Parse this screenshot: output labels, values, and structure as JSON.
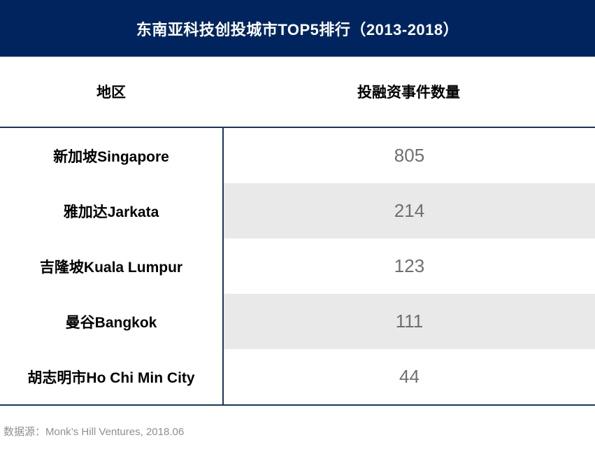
{
  "title": "东南亚科技创投城市TOP5排行（2013-2018）",
  "table": {
    "headers": [
      "地区",
      "投融资事件数量"
    ],
    "rows": [
      {
        "region": "新加坡Singapore",
        "count": "805"
      },
      {
        "region": "雅加达Jarkata",
        "count": "214"
      },
      {
        "region": "吉隆坡Kuala Lumpur",
        "count": "123"
      },
      {
        "region": "曼谷Bangkok",
        "count": "111"
      },
      {
        "region": "胡志明市Ho Chi Min City",
        "count": "44"
      }
    ]
  },
  "footer": {
    "source": "数据源：Monk’s Hill Ventures, 2018.06"
  },
  "colors": {
    "title_bar_bg": "#00255e",
    "title_text": "#ffffff",
    "grid_line": "#17375d",
    "row_shade": "#e9e9e9",
    "value_text": "#6f6f6f",
    "footer_text": "#8f8f8f"
  },
  "chart_data": {
    "type": "table",
    "title": "东南亚科技创投城市TOP5排行（2013-2018）",
    "columns": [
      "地区",
      "投融资事件数量"
    ],
    "categories": [
      "新加坡Singapore",
      "雅加达Jarkata",
      "吉隆坡Kuala Lumpur",
      "曼谷Bangkok",
      "胡志明市Ho Chi Min City"
    ],
    "values": [
      805,
      214,
      123,
      111,
      44
    ],
    "source": "数据源：Monk’s Hill Ventures, 2018.06",
    "shaded_row_indexes": [
      1,
      3
    ]
  }
}
